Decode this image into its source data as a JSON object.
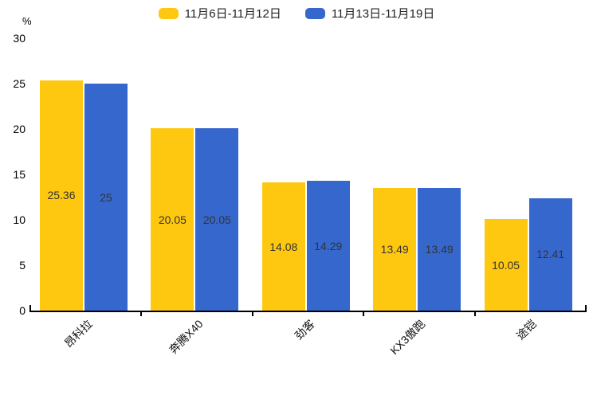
{
  "chart_data": {
    "type": "bar",
    "title": "",
    "categories": [
      "昂科拉",
      "奔腾X40",
      "劲客",
      "KX3傲跑",
      "途铠"
    ],
    "series": [
      {
        "name": "11月6日-11月12日",
        "color": "#FFC810",
        "values": [
          25.36,
          20.05,
          14.08,
          13.49,
          10.05
        ]
      },
      {
        "name": "11月13日-11月19日",
        "color": "#3667CD",
        "values": [
          25,
          20.05,
          14.29,
          13.49,
          12.41
        ]
      }
    ],
    "xlabel": "",
    "ylabel": "%",
    "ylim": [
      0,
      30
    ],
    "yticks": [
      0,
      5,
      10,
      15,
      20,
      25,
      30
    ],
    "grid": false,
    "legend_position": "top",
    "bar_label_color": "#333333",
    "axis_color": "#000000"
  }
}
